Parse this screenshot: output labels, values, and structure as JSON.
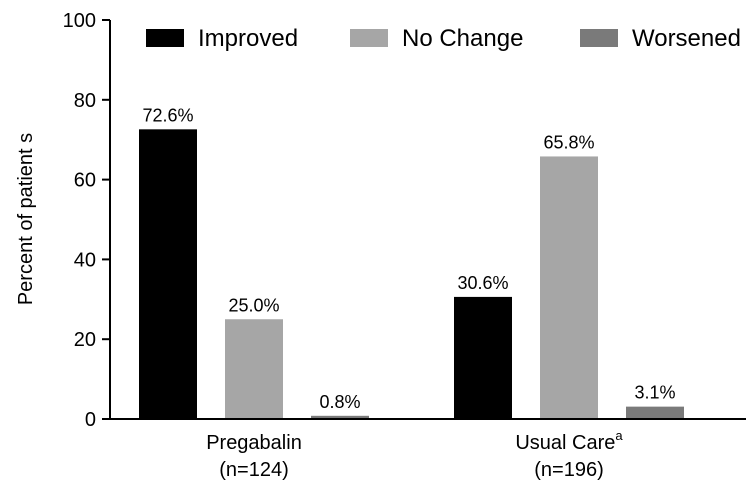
{
  "chart_data": {
    "type": "bar",
    "categories": [
      "Pregabalin",
      "Usual Care"
    ],
    "category_superscripts": [
      "",
      "a"
    ],
    "category_sublabels": [
      "(n=124)",
      "(n=196)"
    ],
    "series": [
      {
        "name": "Improved",
        "values": [
          72.6,
          30.6
        ],
        "labels": [
          "72.6%",
          "30.6%"
        ],
        "color": "#000000"
      },
      {
        "name": "No Change",
        "values": [
          25.0,
          65.8
        ],
        "labels": [
          "25.0%",
          "65.8%"
        ],
        "color": "#a6a6a6"
      },
      {
        "name": "Worsened",
        "values": [
          0.8,
          3.1
        ],
        "labels": [
          "0.8%",
          "3.1%"
        ],
        "color": "#7a7a7a"
      }
    ],
    "ylabel": "Percent of patient s",
    "ylim": [
      0,
      100
    ],
    "yticks": [
      "0",
      "20",
      "40",
      "60",
      "80",
      "100"
    ],
    "legend_position": "top",
    "grid": false
  }
}
